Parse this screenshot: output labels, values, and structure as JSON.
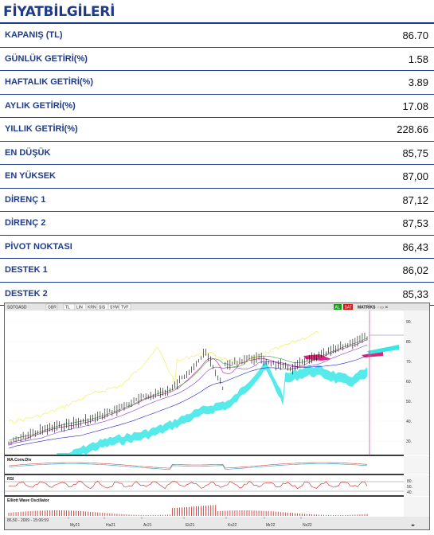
{
  "header": {
    "title": "FİYATBİLGİLERİ"
  },
  "rows": [
    {
      "label": "KAPANIŞ (TL)",
      "value": "86.70"
    },
    {
      "label": "GÜNLÜK GETİRİ(%)",
      "value": "1.58"
    },
    {
      "label": "HAFTALIK GETİRİ(%)",
      "value": "3.89"
    },
    {
      "label": "AYLIK GETİRİ(%)",
      "value": "17.08"
    },
    {
      "label": "YILLIK GETİRİ(%)",
      "value": "228.66"
    },
    {
      "label": "EN DÜŞÜK",
      "value": "85,75"
    },
    {
      "label": "EN YÜKSEK",
      "value": "87,00"
    },
    {
      "label": "DİRENÇ 1",
      "value": "87,12"
    },
    {
      "label": "DİRENÇ 2",
      "value": "87,53"
    },
    {
      "label": "PİVOT NOKTASI",
      "value": "86,43"
    },
    {
      "label": "DESTEK 1",
      "value": "86,02"
    },
    {
      "label": "DESTEK 2",
      "value": "85,33"
    }
  ],
  "chart": {
    "toolbar": {
      "symbol": "SGTGASD",
      "buttons": [
        "GBR",
        "TL",
        "LIN",
        "KRN",
        "SIS",
        "SYM",
        "TVF"
      ],
      "al_label": "AL",
      "sat_label": "SAT",
      "matriks_label": "MATRİKS"
    },
    "price_axis": [
      "90.",
      "80.",
      "70.",
      "60.",
      "50.",
      "40.",
      "30."
    ],
    "panels": {
      "macd_label": "MA.Conv.Div",
      "rsi_label": "RSI",
      "elliott_label": "Elliott Wave Oscillator"
    },
    "rsi_axis": [
      "80.",
      "50.",
      "40."
    ],
    "status": "86,50 - 2009 - 15:06:59",
    "months": [
      "My21",
      "Ha21",
      "Ar21",
      "Ek21",
      "Ks22",
      "Mr22",
      "Nz22"
    ],
    "colors": {
      "cloud_cyan": "#39e6e6",
      "cloud_magenta": "#e0267a",
      "price_bars": "#000000",
      "ma_magenta": "#c0189a",
      "ma_blue": "#2020c8",
      "tenkan_yellow": "#f0f060"
    }
  }
}
